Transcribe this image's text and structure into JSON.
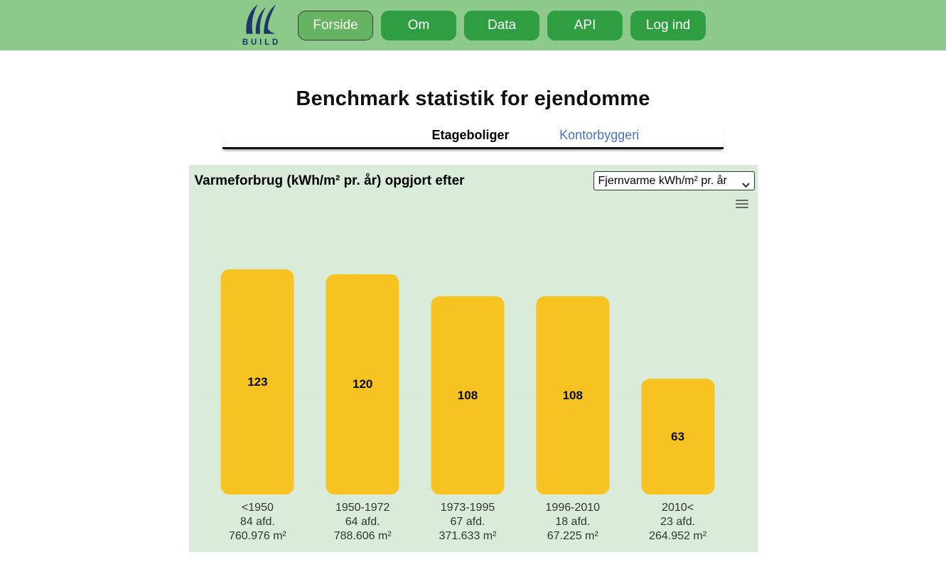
{
  "header": {
    "logo_text": "BUILD",
    "nav": [
      {
        "label": "Forside",
        "active": true
      },
      {
        "label": "Om",
        "active": false
      },
      {
        "label": "Data",
        "active": false
      },
      {
        "label": "API",
        "active": false
      },
      {
        "label": "Log ind",
        "active": false
      }
    ]
  },
  "page": {
    "title": "Benchmark statistik for ejendomme",
    "tabs": [
      {
        "label": "Etageboliger",
        "active": true
      },
      {
        "label": "Kontorbyggeri",
        "active": false
      }
    ]
  },
  "chart": {
    "title": "Varmeforbrug (kWh/m² pr. år) opgjort efter",
    "unit_select": {
      "value": "Fjernvarme kWh/m² pr. år"
    },
    "menu_icon": "hamburger-icon"
  },
  "chart_data": {
    "type": "bar",
    "title": "Varmeforbrug (kWh/m² pr. år) opgjort efter",
    "categories": [
      "<1950",
      "1950-1972",
      "1973-1995",
      "1996-2010",
      "2010<"
    ],
    "values": [
      123,
      120,
      108,
      108,
      63
    ],
    "category_details": [
      {
        "afd": "84 afd.",
        "area": "760.976 m²"
      },
      {
        "afd": "64 afd.",
        "area": "788.606 m²"
      },
      {
        "afd": "67 afd.",
        "area": "371.633 m²"
      },
      {
        "afd": "18 afd.",
        "area": "67.225 m²"
      },
      {
        "afd": "23 afd.",
        "area": "264.952 m²"
      }
    ],
    "ylabel": "kWh/m² pr. år",
    "xlabel": "",
    "ylim": [
      0,
      150
    ],
    "gridline_values": [
      0,
      50,
      100,
      150
    ],
    "grid": true,
    "legend": false,
    "bar_color": "#f7c322",
    "plot_bg_color": "#d9ecda"
  }
}
